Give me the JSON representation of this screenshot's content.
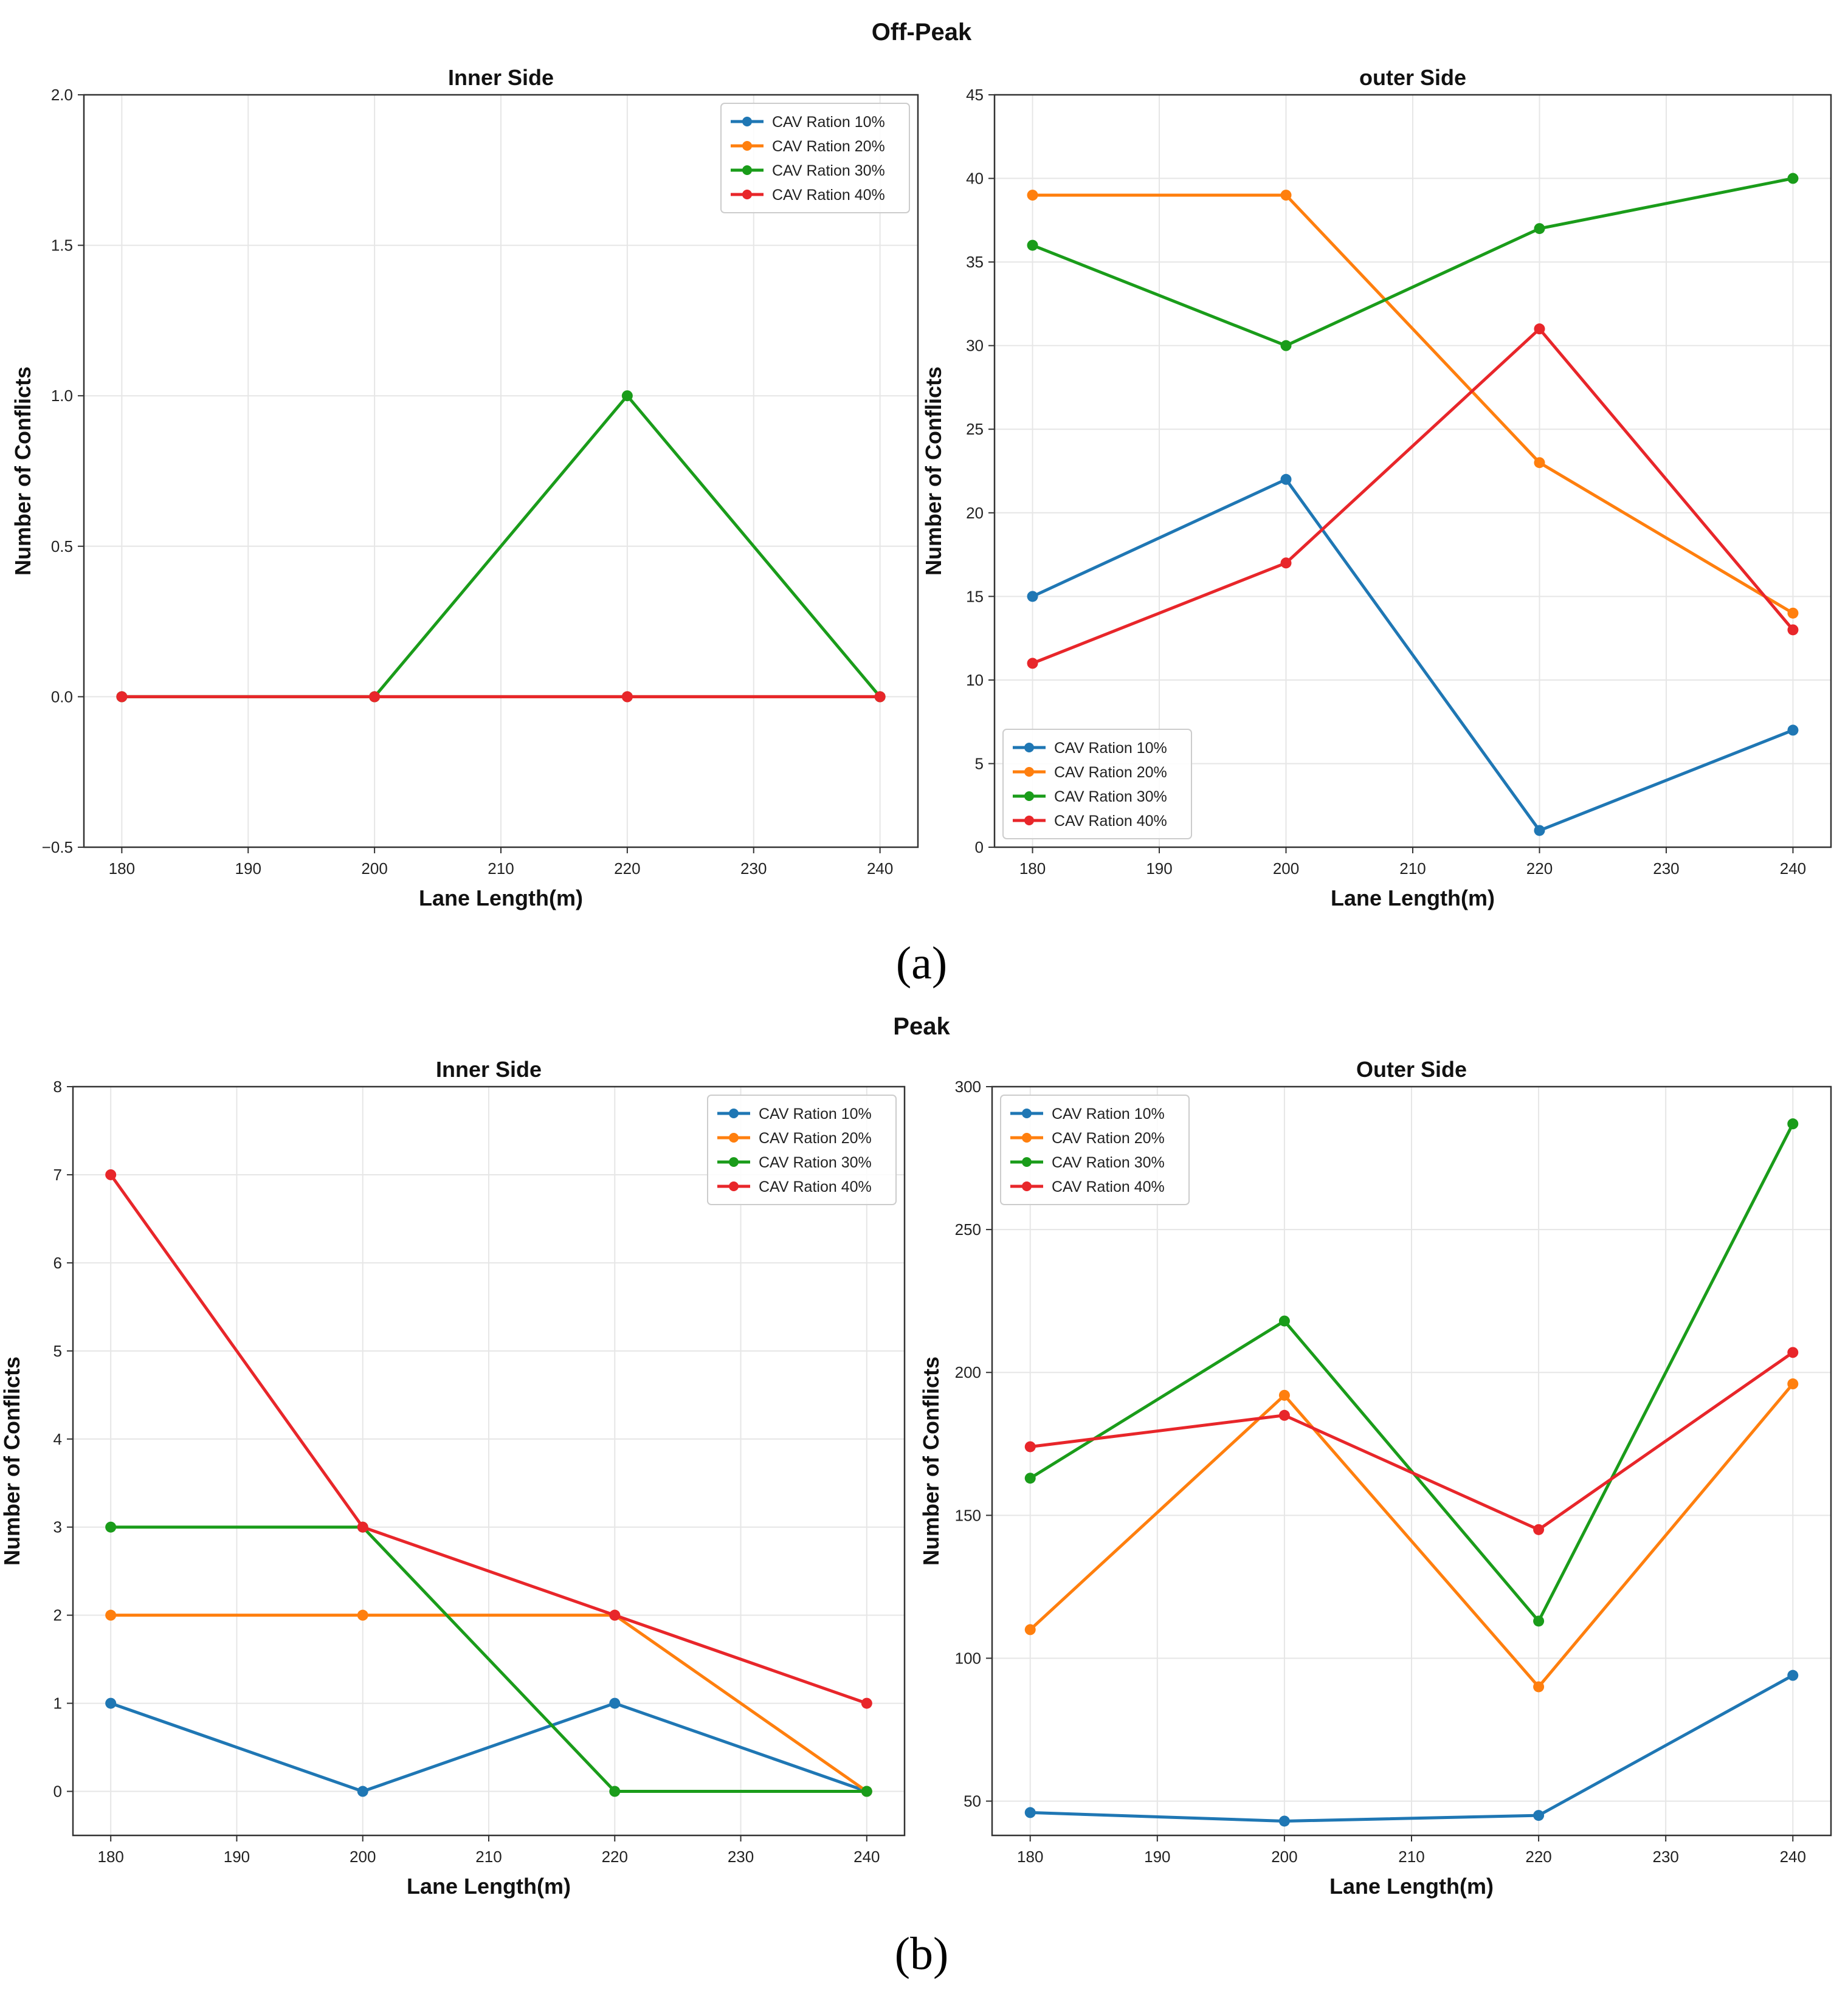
{
  "figure": {
    "panels": [
      {
        "title": "Off-Peak",
        "letter": "(a)"
      },
      {
        "title": "Peak",
        "letter": "(b)"
      }
    ]
  },
  "colors": {
    "CAV Ration 10%": "#1f77b4",
    "CAV Ration 20%": "#ff7f0e",
    "CAV Ration 30%": "#1a9c1a",
    "CAV Ration 40%": "#e8262a"
  },
  "chart_data": [
    {
      "type": "line",
      "panel": "Off-Peak",
      "title": "Inner Side",
      "xlabel": "Lane Length(m)",
      "ylabel": "Number of Conflicts",
      "x": [
        180,
        200,
        220,
        240
      ],
      "xlim": [
        177,
        243
      ],
      "xticks": [
        180,
        190,
        200,
        210,
        220,
        230,
        240
      ],
      "ylim": [
        -0.5,
        2.0
      ],
      "yticks": [
        -0.5,
        0.0,
        0.5,
        1.0,
        1.5,
        2.0
      ],
      "ytick_labels": [
        "−0.5",
        "0.0",
        "0.5",
        "1.0",
        "1.5",
        "2.0"
      ],
      "grid": true,
      "legend_position": "top-right",
      "series": [
        {
          "name": "CAV Ration 10%",
          "values": [
            0,
            0,
            0,
            0
          ]
        },
        {
          "name": "CAV Ration 20%",
          "values": [
            0,
            0,
            0,
            0
          ]
        },
        {
          "name": "CAV Ration 30%",
          "values": [
            0,
            0,
            1,
            0
          ]
        },
        {
          "name": "CAV Ration 40%",
          "values": [
            0,
            0,
            0,
            0
          ]
        }
      ]
    },
    {
      "type": "line",
      "panel": "Off-Peak",
      "title": "outer Side",
      "xlabel": "Lane Length(m)",
      "ylabel": "Number of Conflicts",
      "x": [
        180,
        200,
        220,
        240
      ],
      "xlim": [
        177,
        243
      ],
      "xticks": [
        180,
        190,
        200,
        210,
        220,
        230,
        240
      ],
      "ylim": [
        0,
        45
      ],
      "yticks": [
        0,
        5,
        10,
        15,
        20,
        25,
        30,
        35,
        40,
        45
      ],
      "ytick_labels": [
        "0",
        "5",
        "10",
        "15",
        "20",
        "25",
        "30",
        "35",
        "40",
        "45"
      ],
      "grid": true,
      "legend_position": "bottom-left",
      "series": [
        {
          "name": "CAV Ration 10%",
          "values": [
            15,
            22,
            1,
            7
          ]
        },
        {
          "name": "CAV Ration 20%",
          "values": [
            39,
            39,
            23,
            14
          ]
        },
        {
          "name": "CAV Ration 30%",
          "values": [
            36,
            30,
            37,
            40
          ]
        },
        {
          "name": "CAV Ration 40%",
          "values": [
            11,
            17,
            31,
            13
          ]
        }
      ]
    },
    {
      "type": "line",
      "panel": "Peak",
      "title": "Inner Side",
      "xlabel": "Lane Length(m)",
      "ylabel": "Number of Conflicts",
      "x": [
        180,
        200,
        220,
        240
      ],
      "xlim": [
        177,
        243
      ],
      "xticks": [
        180,
        190,
        200,
        210,
        220,
        230,
        240
      ],
      "ylim": [
        -0.5,
        8
      ],
      "yticks": [
        0,
        1,
        2,
        3,
        4,
        5,
        6,
        7,
        8
      ],
      "ytick_labels": [
        "0",
        "1",
        "2",
        "3",
        "4",
        "5",
        "6",
        "7",
        "8"
      ],
      "grid": true,
      "legend_position": "top-right",
      "series": [
        {
          "name": "CAV Ration 10%",
          "values": [
            1,
            0,
            1,
            0
          ]
        },
        {
          "name": "CAV Ration 20%",
          "values": [
            2,
            2,
            2,
            0
          ]
        },
        {
          "name": "CAV Ration 30%",
          "values": [
            3,
            3,
            0,
            0
          ]
        },
        {
          "name": "CAV Ration 40%",
          "values": [
            7,
            3,
            2,
            1
          ]
        }
      ]
    },
    {
      "type": "line",
      "panel": "Peak",
      "title": "Outer Side",
      "xlabel": "Lane Length(m)",
      "ylabel": "Number of Conflicts",
      "x": [
        180,
        200,
        220,
        240
      ],
      "xlim": [
        177,
        243
      ],
      "xticks": [
        180,
        190,
        200,
        210,
        220,
        230,
        240
      ],
      "ylim": [
        38,
        300
      ],
      "yticks": [
        50,
        100,
        150,
        200,
        250,
        300
      ],
      "ytick_labels": [
        "50",
        "100",
        "150",
        "200",
        "250",
        "300"
      ],
      "grid": true,
      "legend_position": "top-left",
      "series": [
        {
          "name": "CAV Ration 10%",
          "values": [
            46,
            43,
            45,
            94
          ]
        },
        {
          "name": "CAV Ration 20%",
          "values": [
            110,
            192,
            90,
            196
          ]
        },
        {
          "name": "CAV Ration 30%",
          "values": [
            163,
            218,
            113,
            287
          ]
        },
        {
          "name": "CAV Ration 40%",
          "values": [
            174,
            185,
            145,
            207
          ]
        }
      ]
    }
  ]
}
